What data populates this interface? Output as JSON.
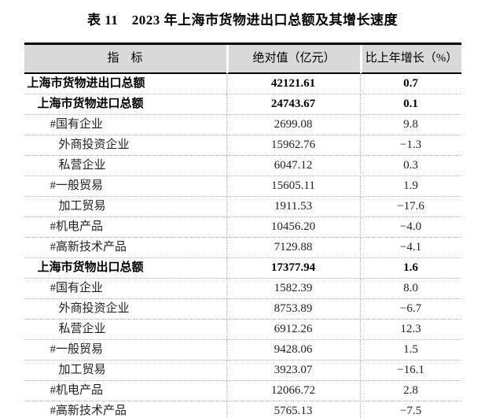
{
  "title": "表 11　2023 年上海市货物进出口总额及其增长速度",
  "table": {
    "colors": {
      "header_bg": "#d9d9d9",
      "grid": "#b9b9b9",
      "heavy_border": "#000000"
    },
    "header": {
      "indicator": "指　标",
      "absolute": "绝对值（亿元）",
      "growth": "比上年增长（%）"
    },
    "rows": [
      {
        "indicator": "上海市货物进出口总额",
        "value": "42121.61",
        "growth": "0.7",
        "bold": true,
        "indent": 0
      },
      {
        "indicator": "上海市货物进口总额",
        "value": "24743.67",
        "growth": "0.1",
        "bold": true,
        "indent": 1
      },
      {
        "indicator": "#国有企业",
        "value": "2699.08",
        "growth": "9.8",
        "bold": false,
        "indent": 2
      },
      {
        "indicator": "外商投资企业",
        "value": "15962.76",
        "growth": "−1.3",
        "bold": false,
        "indent": 3
      },
      {
        "indicator": "私营企业",
        "value": "6047.12",
        "growth": "0.3",
        "bold": false,
        "indent": 3
      },
      {
        "indicator": "#一般贸易",
        "value": "15605.11",
        "growth": "1.9",
        "bold": false,
        "indent": 2
      },
      {
        "indicator": "加工贸易",
        "value": "1911.53",
        "growth": "−17.6",
        "bold": false,
        "indent": 3
      },
      {
        "indicator": "#机电产品",
        "value": "10456.20",
        "growth": "−4.0",
        "bold": false,
        "indent": 2
      },
      {
        "indicator": "#高新技术产品",
        "value": "7129.88",
        "growth": "−4.1",
        "bold": false,
        "indent": 2
      },
      {
        "indicator": "上海市货物出口总额",
        "value": "17377.94",
        "growth": "1.6",
        "bold": true,
        "indent": 1
      },
      {
        "indicator": "#国有企业",
        "value": "1582.39",
        "growth": "8.0",
        "bold": false,
        "indent": 2
      },
      {
        "indicator": "外商投资企业",
        "value": "8753.89",
        "growth": "−6.7",
        "bold": false,
        "indent": 3
      },
      {
        "indicator": "私营企业",
        "value": "6912.26",
        "growth": "12.3",
        "bold": false,
        "indent": 3
      },
      {
        "indicator": "#一般贸易",
        "value": "9428.06",
        "growth": "1.5",
        "bold": false,
        "indent": 2
      },
      {
        "indicator": "加工贸易",
        "value": "3923.07",
        "growth": "−16.1",
        "bold": false,
        "indent": 3
      },
      {
        "indicator": "#机电产品",
        "value": "12066.72",
        "growth": "2.8",
        "bold": false,
        "indent": 2
      },
      {
        "indicator": "#高新技术产品",
        "value": "5765.13",
        "growth": "−7.5",
        "bold": false,
        "indent": 2
      }
    ]
  }
}
